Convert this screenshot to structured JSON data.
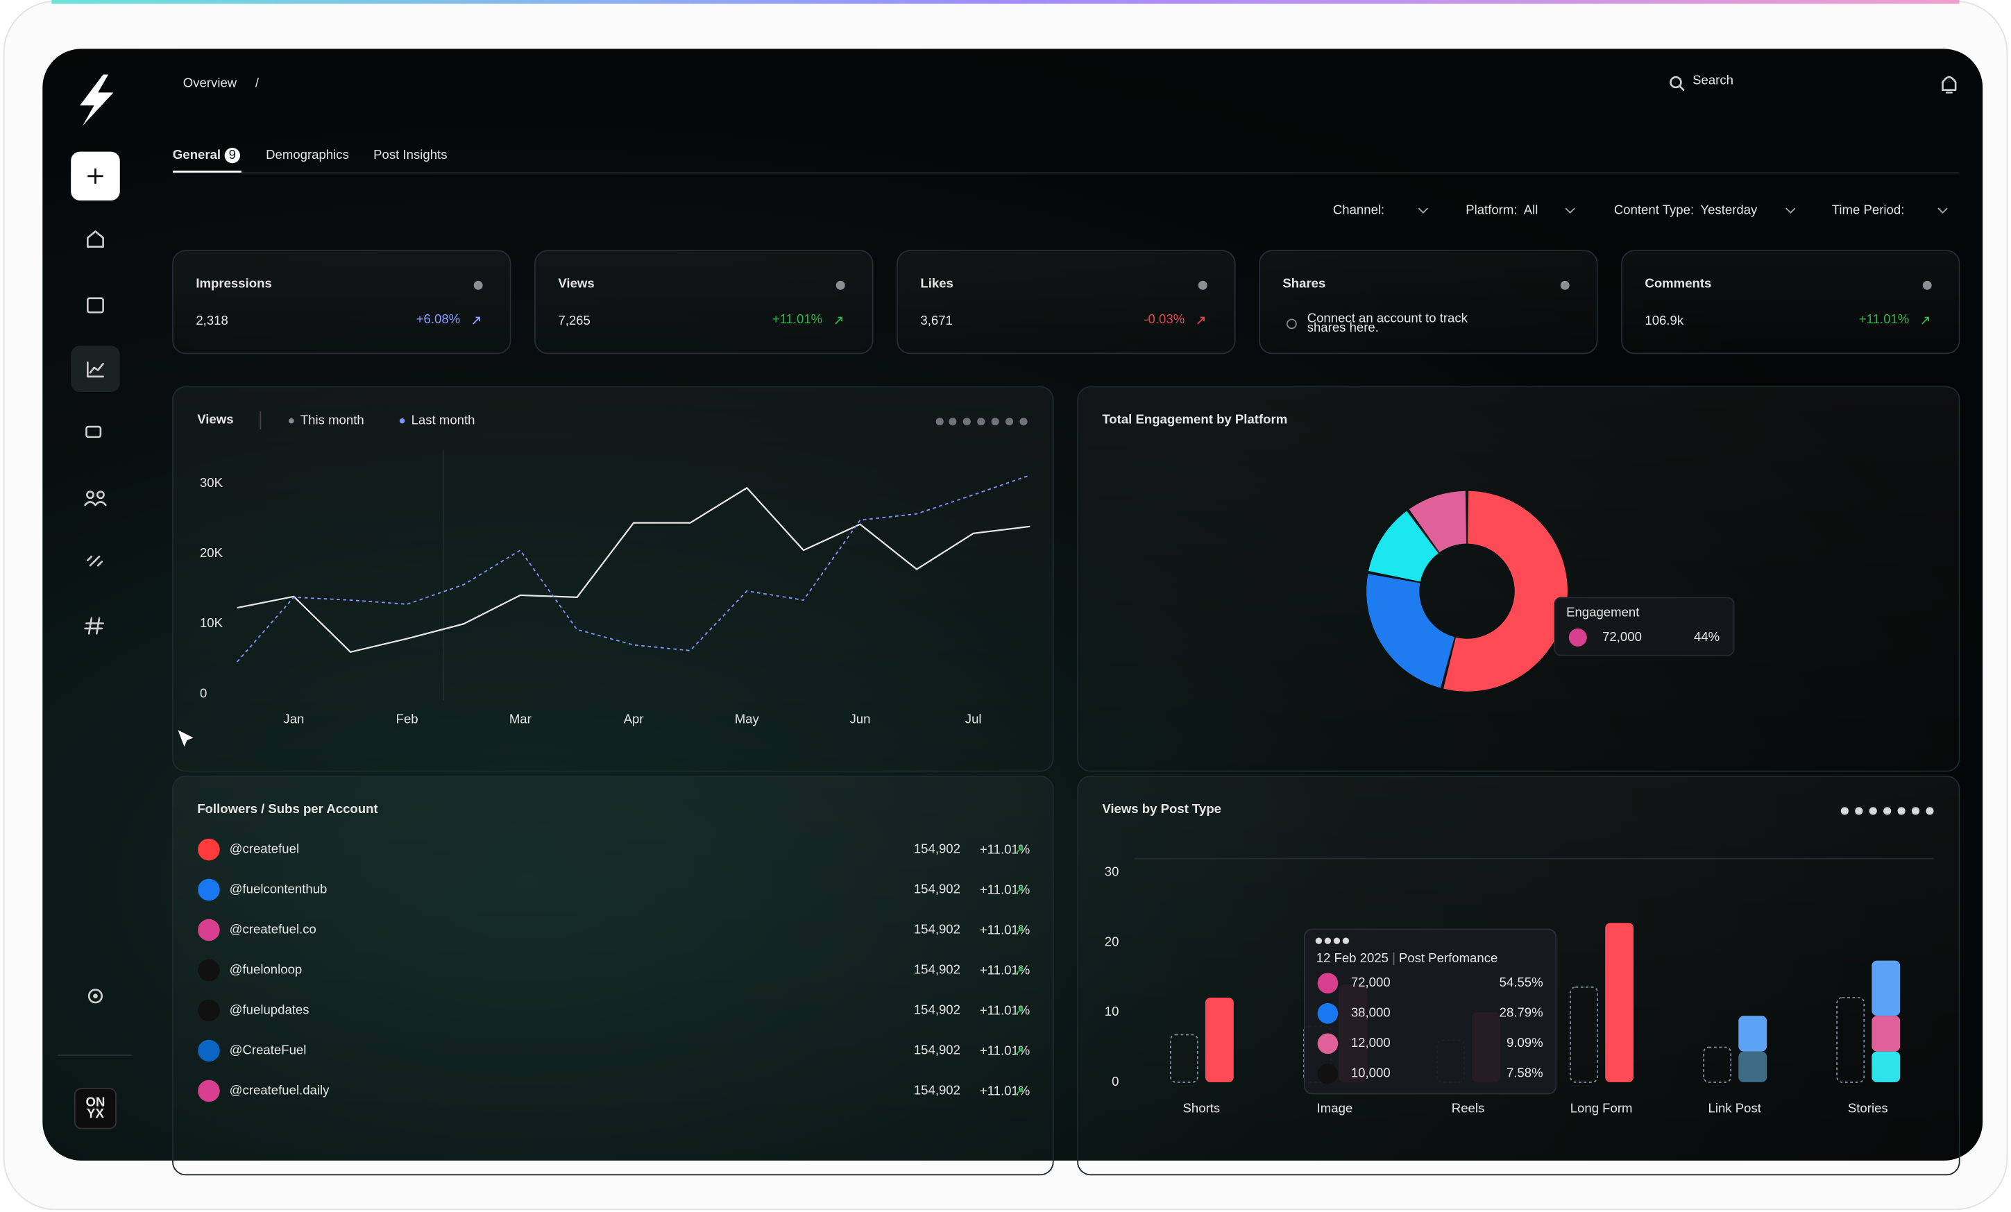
{
  "header": {
    "breadcrumb": "Overview",
    "separator": "/",
    "search": "Search"
  },
  "logo": [
    "ON",
    "YX"
  ],
  "tabs": [
    {
      "label": "General",
      "badge": "9"
    },
    {
      "label": "Demographics"
    },
    {
      "label": "Post Insights"
    }
  ],
  "filters": [
    {
      "label": "Channel:"
    },
    {
      "label": "Platform:",
      "value": "All"
    },
    {
      "label": "Content Type:",
      "value": "Yesterday"
    },
    {
      "label": "Time Period:"
    }
  ],
  "cards": [
    {
      "title": "Impressions",
      "value": "2,318",
      "change": "+6.08%",
      "change_color": "#8b9bff"
    },
    {
      "title": "Views",
      "value": "7,265",
      "change": "+11.01%",
      "change_color": "#2fb34a"
    },
    {
      "title": "Likes",
      "value": "3,671",
      "change": "-0.03%",
      "change_color": "#e0454f"
    },
    {
      "title": "Shares",
      "note": [
        "Connect an account to track",
        "shares here."
      ]
    },
    {
      "title": "Comments",
      "value": "106.9k",
      "change": "+11.01%",
      "change_color": "#2fb34a"
    }
  ],
  "chart_data": [
    {
      "type": "line",
      "title": "Views",
      "categories": [
        null,
        "Jan",
        null,
        "Feb",
        null,
        "Mar",
        null,
        "Apr",
        null,
        "May",
        null,
        "Jun",
        null,
        "Jul",
        null
      ],
      "series": [
        {
          "name": "This month",
          "color": "#e8e8e8",
          "dash": false,
          "values": [
            12300,
            13900,
            6000,
            7900,
            10000,
            14100,
            13800,
            24400,
            24400,
            29400,
            20500,
            24200,
            17800,
            22900,
            23900
          ]
        },
        {
          "name": "Last month",
          "color": "#7d95ff",
          "dash": true,
          "values": [
            4600,
            13800,
            13400,
            12800,
            15600,
            20500,
            9200,
            7000,
            6200,
            14700,
            13400,
            24800,
            25700,
            28400,
            31200
          ]
        }
      ],
      "ylim": [
        0,
        35000
      ],
      "yticks": [
        0,
        {
          "value": 10000,
          "label": "10K"
        },
        {
          "value": 20000,
          "label": "20K"
        },
        {
          "value": 30000,
          "label": "30K"
        }
      ],
      "grid": false
    },
    {
      "type": "pie",
      "title": "Total Engagement by Platform",
      "donut": true,
      "values": [
        54,
        24,
        12,
        10
      ],
      "colors": [
        "#ff4b55",
        "#1f7cf0",
        "#19e6ee",
        "#e0609a"
      ]
    },
    {
      "type": "bar",
      "title": "Views by Post Type",
      "stacked": true,
      "categories": [
        "Shorts",
        "Image",
        "Reels",
        "Long Form",
        "Link Post",
        "Stories"
      ],
      "outline": {
        "color": "#7d8b96",
        "values": [
          6.8,
          8,
          6,
          13.6,
          5,
          12.1
        ]
      },
      "series": [
        {
          "colors": [
            "#ff4b55",
            "#ff4b55",
            "#ff4b55",
            "#ff4b55",
            "#3f6a86",
            "#2fe3ea"
          ],
          "values": [
            12.1,
            14,
            10,
            22.8,
            4.4,
            4.4
          ]
        },
        {
          "colors": [
            "#5da3f5",
            "#5da3f5",
            "#5da3f5",
            "#5da3f5",
            "#5da3f5",
            "#e0609a"
          ],
          "values": [
            null,
            null,
            null,
            null,
            5.1,
            5.1
          ]
        },
        {
          "colors": [
            "#5da3f5",
            "#5da3f5",
            "#5da3f5",
            "#5da3f5",
            "#5da3f5",
            "#5da3f5"
          ],
          "values": [
            null,
            null,
            null,
            null,
            null,
            7.9
          ]
        }
      ],
      "ylim": [
        0,
        32
      ],
      "yticks": [
        0,
        10,
        20,
        30
      ],
      "grid": false
    }
  ],
  "engagement_tooltip": {
    "label": "Engagement",
    "value": "72,000",
    "share": "44%"
  },
  "followers": {
    "title": "Followers / Subs per Account",
    "rows": [
      {
        "handle": "@createfuel",
        "value": "154,902",
        "change": "+11.01%"
      },
      {
        "handle": "@fuelcontenthub",
        "value": "154,902",
        "change": "+11.01%"
      },
      {
        "handle": "@createfuel.co",
        "value": "154,902",
        "change": "+11.01%"
      },
      {
        "handle": "@fuelonloop",
        "value": "154,902",
        "change": "+11.01%"
      },
      {
        "handle": "@fuelupdates",
        "value": "154,902",
        "change": "+11.01%"
      },
      {
        "handle": "@CreateFuel",
        "value": "154,902",
        "change": "+11.01%"
      },
      {
        "handle": "@createfuel.daily",
        "value": "154,902",
        "change": "+11.01%"
      }
    ]
  },
  "post_tooltip": {
    "date": "12 Feb 2025",
    "label": "Post Perfomance",
    "rows": [
      {
        "value": "72,000",
        "share": "54.55%"
      },
      {
        "value": "38,000",
        "share": "28.79%"
      },
      {
        "value": "12,000",
        "share": "9.09%"
      },
      {
        "value": "10,000",
        "share": "7.58%"
      }
    ]
  }
}
